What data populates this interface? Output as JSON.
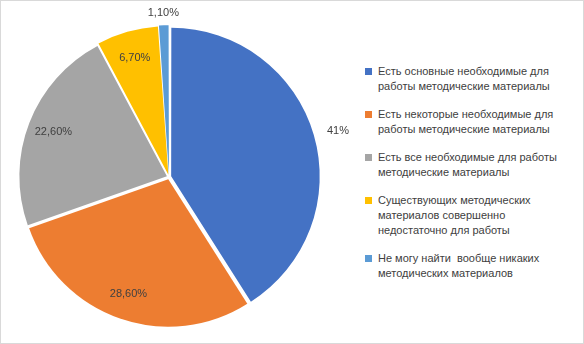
{
  "chart_data": {
    "type": "pie",
    "categories": [
      "Есть основные необходимые для работы методические материалы",
      "Есть некоторые необходимые для работы методические материалы",
      "Есть все необходимые для работы методические материалы",
      "Существующих методических материалов совершенно недостаточно для работы",
      "Не могу найти  вообще никаких методических материалов"
    ],
    "values": [
      41,
      28.6,
      22.6,
      6.7,
      1.1
    ],
    "value_labels": [
      "41%",
      "28,60%",
      "22,60%",
      "6,70%",
      "1,10%"
    ],
    "colors": [
      "#4472c4",
      "#ed7d31",
      "#a5a5a5",
      "#ffc000",
      "#5b9bd5"
    ],
    "legend": "right",
    "data_labels": true
  }
}
